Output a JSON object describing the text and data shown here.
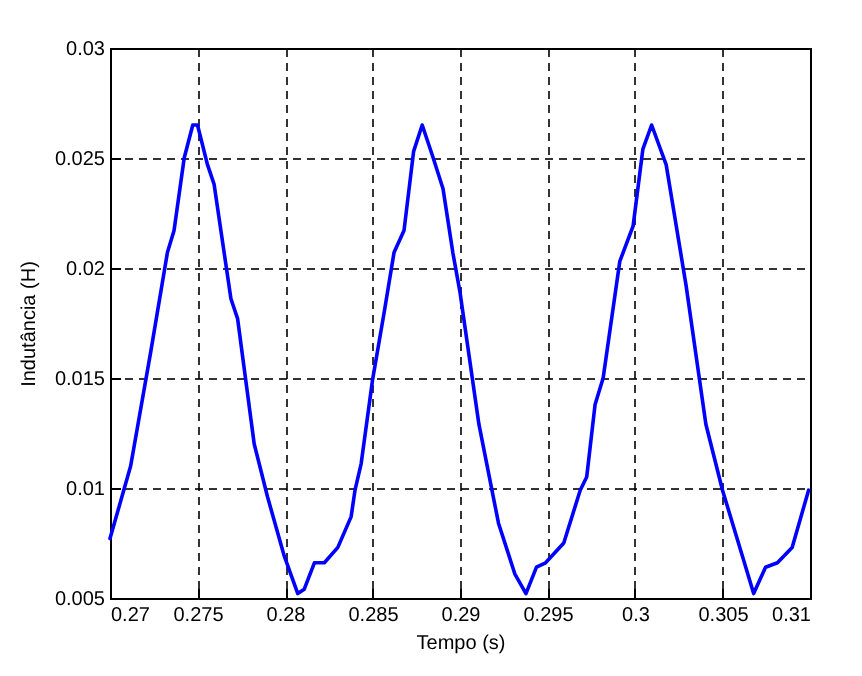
{
  "chart_data": {
    "type": "line",
    "xlabel": "Tempo (s)",
    "ylabel": "Indutância (H)",
    "xlim": [
      0.27,
      0.31
    ],
    "xticks": [
      0.27,
      0.275,
      0.28,
      0.285,
      0.29,
      0.295,
      0.3,
      0.305,
      0.31
    ],
    "ylim": [
      0.005,
      0.03
    ],
    "yticks": [
      0.005,
      0.01,
      0.015,
      0.02,
      0.025,
      0.03
    ],
    "grid": true,
    "line_style": "solid",
    "marker": "none",
    "series": [
      {
        "color": "#0000ff",
        "x": [
          0.27,
          0.27118,
          0.27233,
          0.27328,
          0.27366,
          0.27424,
          0.27473,
          0.275,
          0.27557,
          0.27595,
          0.27691,
          0.27729,
          0.27824,
          0.279,
          0.27996,
          0.28073,
          0.2811,
          0.28168,
          0.28225,
          0.28302,
          0.28378,
          0.284,
          0.28435,
          0.285,
          0.28567,
          0.28623,
          0.2868,
          0.28735,
          0.28784,
          0.28847,
          0.28903,
          0.28959,
          0.29,
          0.29108,
          0.2922,
          0.29313,
          0.29377,
          0.29437,
          0.29489,
          0.29593,
          0.29687,
          0.29724,
          0.29772,
          0.29818,
          0.29913,
          0.29989,
          0.30045,
          0.30095,
          0.30178,
          0.30292,
          0.30405,
          0.305,
          0.30614,
          0.30678,
          0.30746,
          0.30814,
          0.30898,
          0.30992
        ],
        "values": [
          0.0077,
          0.011,
          0.0162,
          0.0207,
          0.0217,
          0.025,
          0.0265,
          0.0265,
          0.0247,
          0.0238,
          0.0186,
          0.0177,
          0.012,
          0.0096,
          0.0069,
          0.0052,
          0.0054,
          0.0066,
          0.0066,
          0.0073,
          0.0087,
          0.0099,
          0.0111,
          0.0149,
          0.018,
          0.0207,
          0.0217,
          0.0253,
          0.0265,
          0.025,
          0.0236,
          0.0207,
          0.0189,
          0.0129,
          0.0084,
          0.0061,
          0.0052,
          0.0064,
          0.0066,
          0.0075,
          0.0099,
          0.0105,
          0.0138,
          0.015,
          0.0203,
          0.0219,
          0.0254,
          0.0265,
          0.0247,
          0.0192,
          0.0129,
          0.0099,
          0.0069,
          0.0052,
          0.0064,
          0.0066,
          0.0073,
          0.0099
        ]
      }
    ]
  }
}
